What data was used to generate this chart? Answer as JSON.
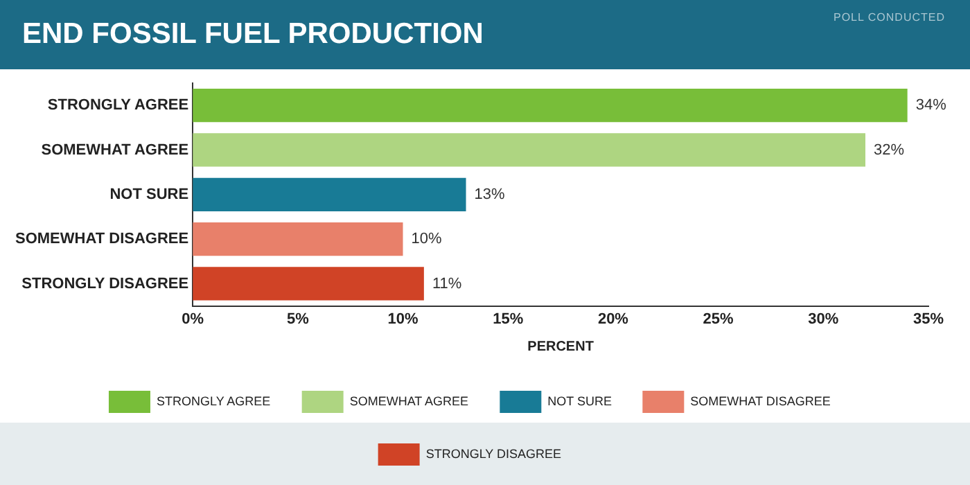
{
  "chart_data": {
    "type": "bar",
    "orientation": "horizontal",
    "title": "END FOSSIL FUEL PRODUCTION",
    "subtitle": "POLL CONDUCTED",
    "xlabel": "PERCENT",
    "categories": [
      "STRONGLY AGREE",
      "SOMEWHAT AGREE",
      "NOT SURE",
      "SOMEWHAT DISAGREE",
      "STRONGLY DISAGREE"
    ],
    "series": [
      {
        "name": "STRONGLY AGREE",
        "color": "#78be39",
        "values": [
          34,
          null,
          null,
          null,
          null
        ]
      },
      {
        "name": "SOMEWHAT AGREE",
        "color": "#aed581",
        "values": [
          null,
          32,
          null,
          null,
          null
        ]
      },
      {
        "name": "NOT SURE",
        "color": "#187b96",
        "values": [
          null,
          null,
          13,
          null,
          null
        ]
      },
      {
        "name": "SOMEWHAT DISAGREE",
        "color": "#e8806a",
        "values": [
          null,
          null,
          null,
          10,
          null
        ]
      },
      {
        "name": "STRONGLY DISAGREE",
        "color": "#d04326",
        "values": [
          null,
          null,
          null,
          null,
          11
        ]
      }
    ],
    "value_labels": [
      "34%",
      "32%",
      "13%",
      "10%",
      "11%"
    ],
    "xlim": [
      0,
      35
    ],
    "xticks": [
      {
        "value": 0,
        "label": "0%"
      },
      {
        "value": 5,
        "label": "5%"
      },
      {
        "value": 10,
        "label": "10%"
      },
      {
        "value": 15,
        "label": "15%"
      },
      {
        "value": 20,
        "label": "20%"
      },
      {
        "value": 25,
        "label": "25%"
      },
      {
        "value": 30,
        "label": "30%"
      },
      {
        "value": 35,
        "label": "35%"
      }
    ],
    "legend": "bottom",
    "grid": false
  }
}
